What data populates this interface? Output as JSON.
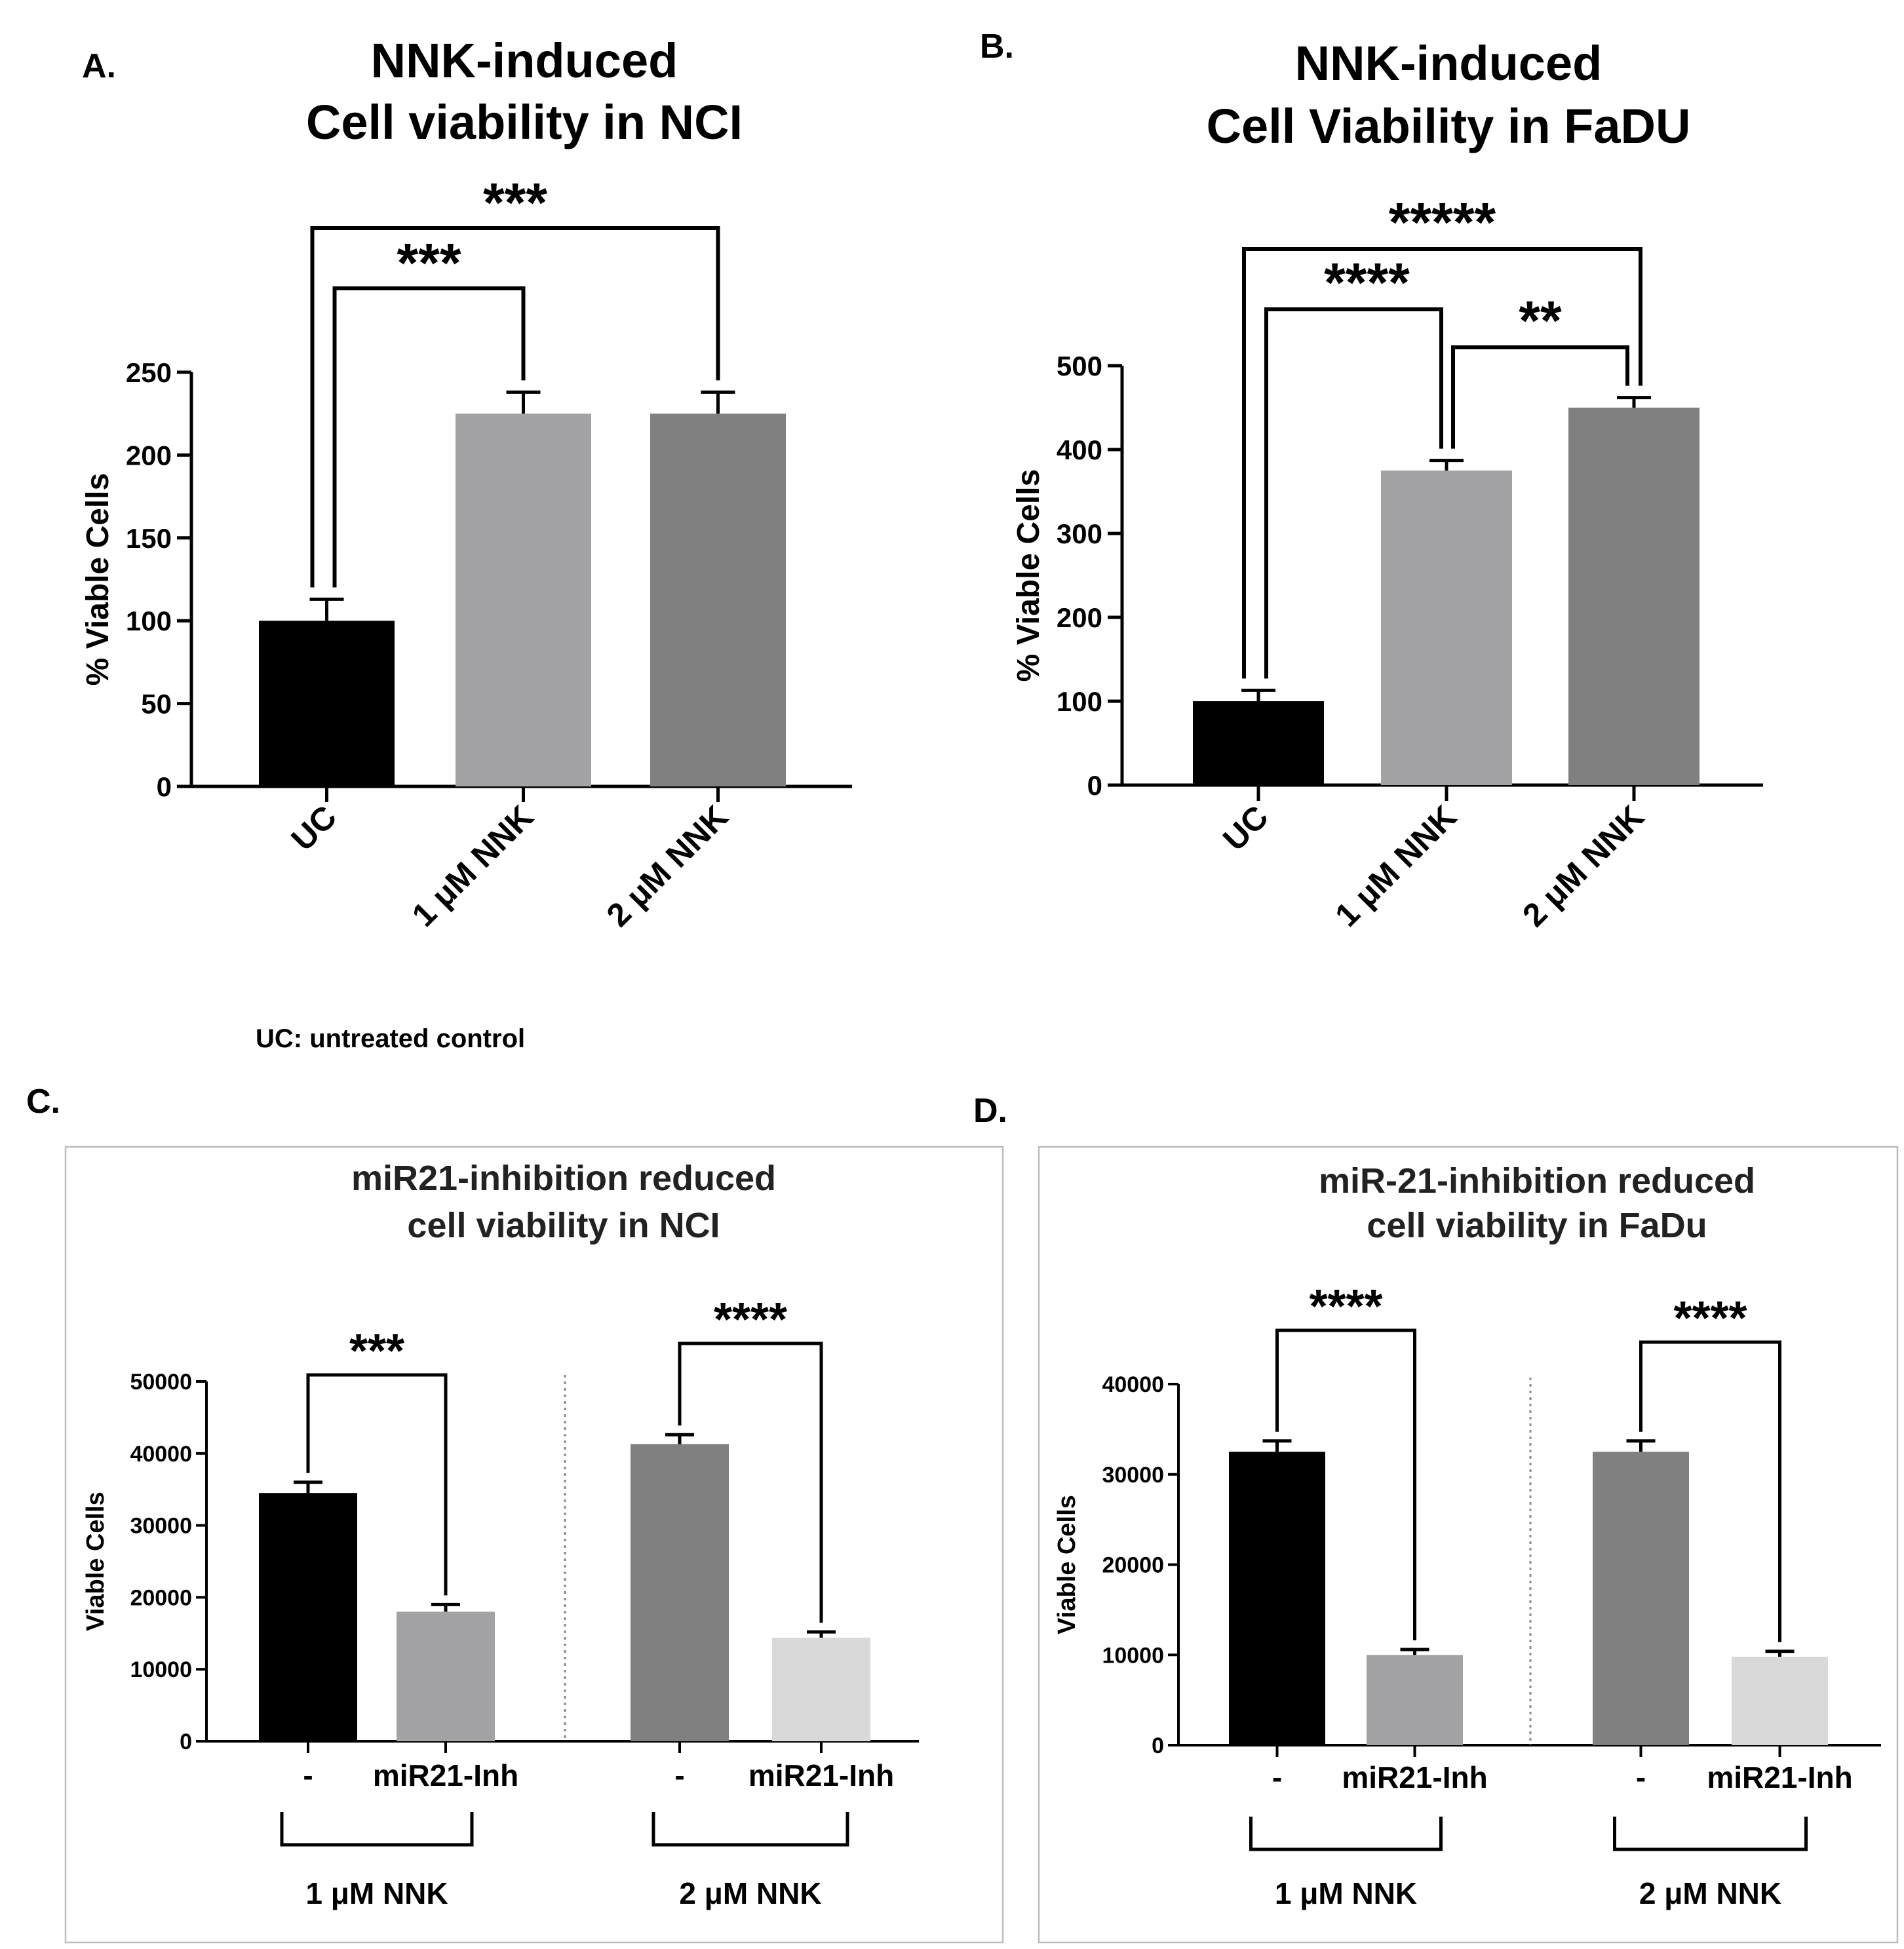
{
  "footnote": "UC: untreated control",
  "chart_data": [
    {
      "panel": "A.",
      "type": "bar",
      "title": [
        "NNK-induced",
        "Cell viability in NCI"
      ],
      "ylabel": "% Viable Cells",
      "xlabel": "",
      "ylim": [
        0,
        250
      ],
      "yticks": [
        0,
        50,
        100,
        150,
        200,
        250
      ],
      "categories": [
        "UC",
        "1 μM NNK",
        "2 μM NNK"
      ],
      "values": [
        100,
        225,
        225
      ],
      "errors": [
        13,
        13,
        13
      ],
      "colors": [
        "#000000",
        "#a3a3a5",
        "#808080"
      ],
      "significance": [
        {
          "between": [
            0,
            1
          ],
          "label": "***"
        },
        {
          "between": [
            0,
            2
          ],
          "label": "***"
        }
      ]
    },
    {
      "panel": "B.",
      "type": "bar",
      "title": [
        "NNK-induced",
        "Cell Viability in FaDU"
      ],
      "ylabel": "% Viable Cells",
      "xlabel": "",
      "ylim": [
        0,
        500
      ],
      "yticks": [
        0,
        100,
        200,
        300,
        400,
        500
      ],
      "categories": [
        "UC",
        "1 μM NNK",
        "2 μM NNK"
      ],
      "values": [
        100,
        375,
        450
      ],
      "errors": [
        13,
        12,
        12
      ],
      "colors": [
        "#000000",
        "#a3a3a5",
        "#808080"
      ],
      "significance": [
        {
          "between": [
            0,
            1
          ],
          "label": "****"
        },
        {
          "between": [
            1,
            2
          ],
          "label": "**"
        },
        {
          "between": [
            0,
            2
          ],
          "label": "*****"
        }
      ]
    },
    {
      "panel": "C.",
      "type": "bar",
      "title": [
        "miR21-inhibition reduced",
        "cell viability in NCI"
      ],
      "ylabel": "Viable Cells",
      "xlabel": "",
      "ylim": [
        0,
        50000
      ],
      "yticks": [
        0,
        10000,
        20000,
        30000,
        40000,
        50000
      ],
      "categories": [
        "-",
        "miR21-Inh",
        "-",
        "miR21-Inh"
      ],
      "groups": [
        "1 μM  NNK",
        "2 μM NNK"
      ],
      "values": [
        34500,
        18000,
        41300,
        14400
      ],
      "errors": [
        1500,
        1000,
        1300,
        800
      ],
      "colors": [
        "#000000",
        "#a3a3a5",
        "#808080",
        "#d9d9d9"
      ],
      "significance": [
        {
          "between": [
            0,
            1
          ],
          "label": "***"
        },
        {
          "between": [
            2,
            3
          ],
          "label": "****"
        }
      ]
    },
    {
      "panel": "D.",
      "type": "bar",
      "title": [
        "miR-21-inhibition reduced",
        "cell viability in FaDu"
      ],
      "ylabel": "Viable Cells",
      "xlabel": "",
      "ylim": [
        0,
        40000
      ],
      "yticks": [
        0,
        10000,
        20000,
        30000,
        40000
      ],
      "categories": [
        "-",
        "miR21-Inh",
        "-",
        "miR21-Inh"
      ],
      "groups": [
        "1 μM NNK",
        "2 μM NNK"
      ],
      "values": [
        32500,
        10000,
        32500,
        9800
      ],
      "errors": [
        1200,
        600,
        1200,
        600
      ],
      "colors": [
        "#000000",
        "#a3a3a5",
        "#808080",
        "#d9d9d9"
      ],
      "significance": [
        {
          "between": [
            0,
            1
          ],
          "label": "****"
        },
        {
          "between": [
            2,
            3
          ],
          "label": "****"
        }
      ]
    }
  ]
}
